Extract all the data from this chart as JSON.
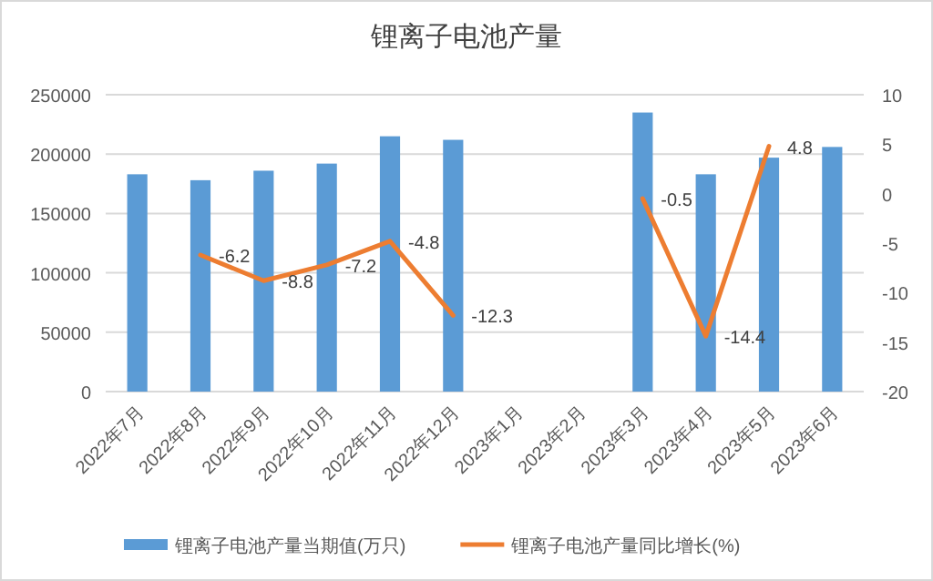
{
  "chart_data": {
    "type": "bar",
    "title": "锂离子电池产量",
    "categories": [
      "2022年7月",
      "2022年8月",
      "2022年9月",
      "2022年10月",
      "2022年11月",
      "2022年12月",
      "2023年1月",
      "2023年2月",
      "2023年3月",
      "2023年4月",
      "2023年5月",
      "2023年6月"
    ],
    "series": [
      {
        "name": "锂离子电池产量当期值(万只)",
        "color": "#5b9bd5",
        "values": [
          183000,
          178000,
          186000,
          192000,
          215000,
          212000,
          null,
          null,
          235000,
          183000,
          197000,
          206000
        ]
      },
      {
        "name": "锂离子电池产量同比增长(%)",
        "type": "line",
        "axis": "y2",
        "color": "#ed7d31",
        "values": [
          null,
          -6.2,
          -8.8,
          -7.2,
          -4.8,
          -12.3,
          null,
          null,
          -0.5,
          -14.4,
          4.8,
          null
        ],
        "value_labels": [
          null,
          "-6.2",
          "-8.8",
          "-7.2",
          "-4.8",
          "-12.3",
          null,
          null,
          "-0.5",
          "-14.4",
          "4.8",
          null
        ]
      }
    ],
    "ylim": [
      0,
      250000
    ],
    "yticks": [
      0,
      50000,
      100000,
      150000,
      200000,
      250000
    ],
    "y2lim": [
      -20,
      10
    ],
    "y2ticks": [
      -20,
      -15,
      -10,
      -5,
      0,
      5,
      10
    ],
    "grid": "y",
    "legend": "bottom",
    "marker": "none",
    "line_style": "solid"
  }
}
